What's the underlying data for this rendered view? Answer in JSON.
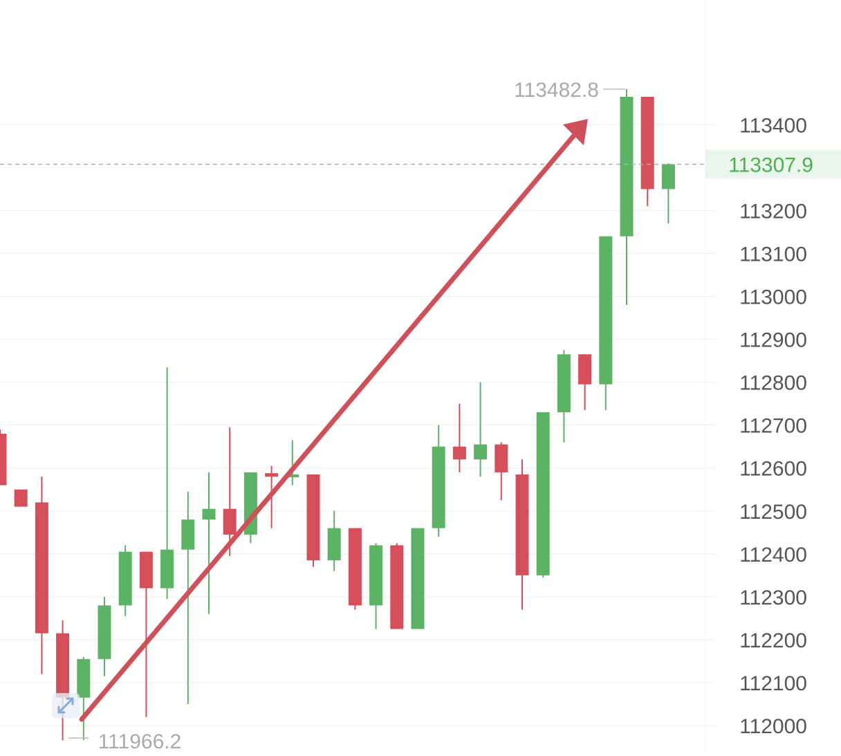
{
  "chart_data": {
    "type": "candlestick",
    "y_range": [
      111950,
      113490
    ],
    "y_ticks": [
      {
        "value": 113400,
        "label": "113400"
      },
      {
        "value": 113200,
        "label": "113200"
      },
      {
        "value": 113100,
        "label": "113100"
      },
      {
        "value": 113000,
        "label": "113000"
      },
      {
        "value": 112900,
        "label": "112900"
      },
      {
        "value": 112800,
        "label": "112800"
      },
      {
        "value": 112700,
        "label": "112700"
      },
      {
        "value": 112600,
        "label": "112600"
      },
      {
        "value": 112500,
        "label": "112500"
      },
      {
        "value": 112400,
        "label": "112400"
      },
      {
        "value": 112300,
        "label": "112300"
      },
      {
        "value": 112200,
        "label": "112200"
      },
      {
        "value": 112100,
        "label": "112100"
      },
      {
        "value": 112000,
        "label": "112000"
      }
    ],
    "current_price": {
      "value": 113307.9,
      "label": "113307.9"
    },
    "high_marker": {
      "value": 113482.8,
      "label": "113482.8"
    },
    "low_marker": {
      "value": 111966.2,
      "label": "111966.2"
    },
    "colors": {
      "up": "#5cb265",
      "down": "#d44f5a",
      "arrow": "#d0505a",
      "current": "#4caf50"
    },
    "candles": [
      {
        "o": 112680,
        "h": 112690,
        "l": 112560,
        "c": 112560
      },
      {
        "o": 112550,
        "h": 112550,
        "l": 112510,
        "c": 112510
      },
      {
        "o": 112520,
        "h": 112580,
        "l": 112120,
        "c": 112215
      },
      {
        "o": 112215,
        "h": 112245,
        "l": 111966,
        "c": 112065
      },
      {
        "o": 112065,
        "h": 112160,
        "l": 111966,
        "c": 112155
      },
      {
        "o": 112155,
        "h": 112300,
        "l": 112115,
        "c": 112280
      },
      {
        "o": 112280,
        "h": 112420,
        "l": 112255,
        "c": 112405
      },
      {
        "o": 112405,
        "h": 112405,
        "l": 112020,
        "c": 112320
      },
      {
        "o": 112320,
        "h": 112835,
        "l": 112295,
        "c": 112410
      },
      {
        "o": 112410,
        "h": 112545,
        "l": 112050,
        "c": 112480
      },
      {
        "o": 112480,
        "h": 112590,
        "l": 112260,
        "c": 112505
      },
      {
        "o": 112505,
        "h": 112695,
        "l": 112395,
        "c": 112445
      },
      {
        "o": 112445,
        "h": 112590,
        "l": 112425,
        "c": 112590
      },
      {
        "o": 112588,
        "h": 112605,
        "l": 112460,
        "c": 112580
      },
      {
        "o": 112580,
        "h": 112665,
        "l": 112560,
        "c": 112585
      },
      {
        "o": 112585,
        "h": 112585,
        "l": 112370,
        "c": 112385
      },
      {
        "o": 112385,
        "h": 112500,
        "l": 112360,
        "c": 112460
      },
      {
        "o": 112460,
        "h": 112460,
        "l": 112270,
        "c": 112280
      },
      {
        "o": 112280,
        "h": 112425,
        "l": 112225,
        "c": 112420
      },
      {
        "o": 112420,
        "h": 112425,
        "l": 112225,
        "c": 112225
      },
      {
        "o": 112225,
        "h": 112460,
        "l": 112225,
        "c": 112460
      },
      {
        "o": 112460,
        "h": 112700,
        "l": 112440,
        "c": 112650
      },
      {
        "o": 112650,
        "h": 112750,
        "l": 112590,
        "c": 112620
      },
      {
        "o": 112620,
        "h": 112800,
        "l": 112580,
        "c": 112655
      },
      {
        "o": 112655,
        "h": 112660,
        "l": 112525,
        "c": 112590
      },
      {
        "o": 112585,
        "h": 112620,
        "l": 112270,
        "c": 112350
      },
      {
        "o": 112350,
        "h": 112730,
        "l": 112345,
        "c": 112730
      },
      {
        "o": 112730,
        "h": 112875,
        "l": 112660,
        "c": 112865
      },
      {
        "o": 112865,
        "h": 112865,
        "l": 112735,
        "c": 112795
      },
      {
        "o": 112795,
        "h": 113140,
        "l": 112735,
        "c": 113140
      },
      {
        "o": 113140,
        "h": 113482.8,
        "l": 112980,
        "c": 113465
      },
      {
        "o": 113465,
        "h": 113465,
        "l": 113210,
        "c": 113250
      },
      {
        "o": 113250,
        "h": 113310,
        "l": 113170,
        "c": 113307.9
      }
    ]
  }
}
